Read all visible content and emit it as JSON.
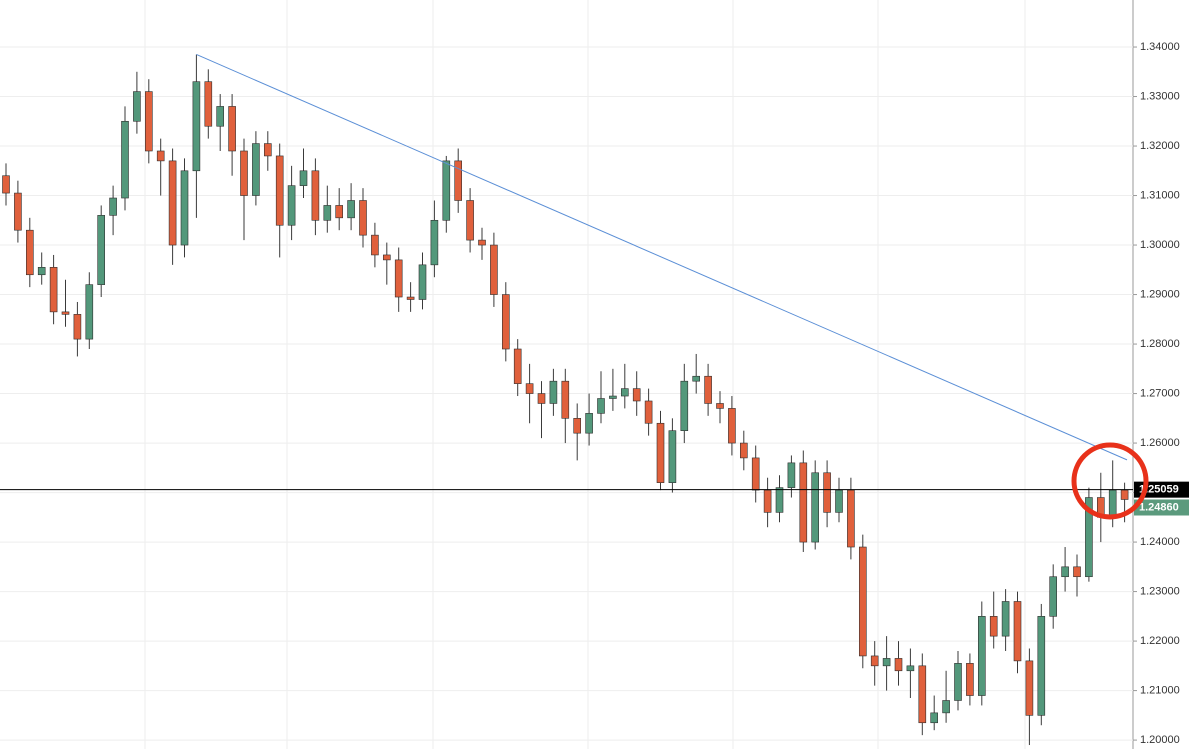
{
  "chart_data": {
    "type": "candlestick",
    "open": [
      1.314,
      1.3105,
      1.303,
      1.294,
      1.2955,
      1.2865,
      1.286,
      1.281,
      1.292,
      1.306,
      1.3095,
      1.325,
      1.331,
      1.319,
      1.317,
      1.3,
      1.315,
      1.333,
      1.324,
      1.328,
      1.319,
      1.31,
      1.3205,
      1.318,
      1.304,
      1.312,
      1.315,
      1.305,
      1.308,
      1.3055,
      1.309,
      1.302,
      1.298,
      1.297,
      1.2895,
      1.289,
      1.296,
      1.305,
      1.317,
      1.309,
      1.301,
      1.3,
      1.29,
      1.279,
      1.272,
      1.27,
      1.268,
      1.2725,
      1.265,
      1.262,
      1.266,
      1.269,
      1.2695,
      1.271,
      1.2685,
      1.264,
      1.252,
      1.2625,
      1.2725,
      1.2735,
      1.268,
      1.267,
      1.26,
      1.257,
      1.2505,
      1.246,
      1.251,
      1.256,
      1.24,
      1.254,
      1.246,
      1.2505,
      1.239,
      1.217,
      1.215,
      1.2165,
      1.214,
      1.215,
      1.2035,
      1.2055,
      1.208,
      1.2155,
      1.209,
      1.225,
      1.221,
      1.228,
      1.216,
      1.205,
      1.225,
      1.233,
      1.235,
      1.233,
      1.249,
      1.245,
      1.2505
    ],
    "high": [
      1.3165,
      1.313,
      1.3055,
      1.2985,
      1.298,
      1.293,
      1.2885,
      1.2945,
      1.308,
      1.312,
      1.328,
      1.335,
      1.3335,
      1.3215,
      1.3195,
      1.3175,
      1.3385,
      1.3355,
      1.3305,
      1.3305,
      1.3215,
      1.323,
      1.323,
      1.3205,
      1.316,
      1.3195,
      1.3175,
      1.312,
      1.3115,
      1.3125,
      1.3115,
      1.3045,
      1.3005,
      1.2995,
      1.2925,
      1.2985,
      1.309,
      1.318,
      1.3195,
      1.3115,
      1.3035,
      1.3025,
      1.2925,
      1.281,
      1.276,
      1.2725,
      1.275,
      1.275,
      1.268,
      1.27,
      1.2745,
      1.275,
      1.276,
      1.2745,
      1.271,
      1.2665,
      1.265,
      1.276,
      1.278,
      1.276,
      1.2705,
      1.2695,
      1.2625,
      1.2595,
      1.253,
      1.2535,
      1.2575,
      1.2585,
      1.2565,
      1.2565,
      1.253,
      1.253,
      1.2415,
      1.22,
      1.221,
      1.22,
      1.2185,
      1.2175,
      1.209,
      1.214,
      1.218,
      1.2175,
      1.228,
      1.23,
      1.2305,
      1.23,
      1.2185,
      1.2275,
      1.2355,
      1.239,
      1.2375,
      1.251,
      1.254,
      1.2565,
      1.252
    ],
    "low": [
      1.308,
      1.3005,
      1.2915,
      1.292,
      1.284,
      1.2835,
      1.2775,
      1.279,
      1.2895,
      1.302,
      1.307,
      1.3225,
      1.3165,
      1.31,
      1.296,
      1.2975,
      1.3055,
      1.3215,
      1.319,
      1.314,
      1.301,
      1.308,
      1.315,
      1.2975,
      1.301,
      1.3095,
      1.302,
      1.3025,
      1.303,
      1.303,
      1.2995,
      1.2955,
      1.292,
      1.2865,
      1.2865,
      1.287,
      1.2935,
      1.3025,
      1.3065,
      1.2985,
      1.297,
      1.2875,
      1.2765,
      1.2695,
      1.264,
      1.261,
      1.2655,
      1.26,
      1.2565,
      1.2595,
      1.264,
      1.2665,
      1.267,
      1.2655,
      1.2615,
      1.2505,
      1.25,
      1.26,
      1.27,
      1.2655,
      1.264,
      1.2575,
      1.2545,
      1.248,
      1.243,
      1.244,
      1.249,
      1.238,
      1.2385,
      1.243,
      1.244,
      1.2365,
      1.2145,
      1.211,
      1.21,
      1.211,
      1.2085,
      1.201,
      1.202,
      1.2035,
      1.206,
      1.207,
      1.207,
      1.2185,
      1.218,
      1.2135,
      1.199,
      1.203,
      1.2225,
      1.23,
      1.229,
      1.232,
      1.24,
      1.243,
      1.244
    ],
    "close": [
      1.3105,
      1.303,
      1.294,
      1.2955,
      1.2865,
      1.286,
      1.281,
      1.292,
      1.306,
      1.3095,
      1.325,
      1.331,
      1.319,
      1.317,
      1.3,
      1.315,
      1.333,
      1.324,
      1.328,
      1.319,
      1.31,
      1.3205,
      1.318,
      1.304,
      1.312,
      1.315,
      1.305,
      1.308,
      1.3055,
      1.309,
      1.302,
      1.298,
      1.297,
      1.2895,
      1.289,
      1.296,
      1.305,
      1.317,
      1.309,
      1.301,
      1.3,
      1.29,
      1.279,
      1.272,
      1.27,
      1.268,
      1.2725,
      1.265,
      1.262,
      1.266,
      1.269,
      1.2695,
      1.271,
      1.2685,
      1.264,
      1.252,
      1.2625,
      1.2725,
      1.2735,
      1.268,
      1.267,
      1.26,
      1.257,
      1.2505,
      1.246,
      1.251,
      1.256,
      1.24,
      1.254,
      1.246,
      1.2505,
      1.239,
      1.217,
      1.215,
      1.2165,
      1.214,
      1.215,
      1.2035,
      1.2055,
      1.208,
      1.2155,
      1.209,
      1.225,
      1.221,
      1.228,
      1.216,
      1.205,
      1.225,
      1.233,
      1.235,
      1.233,
      1.249,
      1.245,
      1.2505,
      1.2486
    ],
    "up_color": "#53987b",
    "down_color": "#e0603c",
    "ylim": [
      1.1982,
      1.3495
    ],
    "yticks": [
      {
        "value": 1.2,
        "label": "1.20000"
      },
      {
        "value": 1.21,
        "label": "1.21000"
      },
      {
        "value": 1.22,
        "label": "1.22000"
      },
      {
        "value": 1.23,
        "label": "1.23000"
      },
      {
        "value": 1.24,
        "label": "1.24000"
      },
      {
        "value": 1.25,
        "label": "1.25000"
      },
      {
        "value": 1.26,
        "label": "1.26000"
      },
      {
        "value": 1.27,
        "label": "1.27000"
      },
      {
        "value": 1.28,
        "label": "1.28000"
      },
      {
        "value": 1.29,
        "label": "1.29000"
      },
      {
        "value": 1.3,
        "label": "1.30000"
      },
      {
        "value": 1.31,
        "label": "1.31000"
      },
      {
        "value": 1.32,
        "label": "1.32000"
      },
      {
        "value": 1.33,
        "label": "1.33000"
      },
      {
        "value": 1.34,
        "label": "1.34000"
      }
    ],
    "grid": true,
    "trendline": {
      "values": [
        1.3385,
        1.2566
      ],
      "color": "#5b8fd6"
    },
    "price_lines": [
      {
        "value": 1.25059,
        "label": "1.25059",
        "color": "#000000"
      },
      {
        "value": 1.2486,
        "label": "1.24860",
        "color": "#5b9a7d"
      }
    ]
  }
}
